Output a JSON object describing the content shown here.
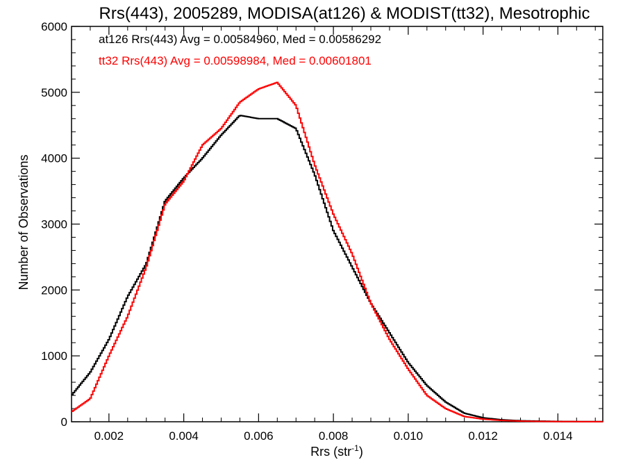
{
  "chart_data": {
    "type": "line",
    "style": "histogram-step",
    "title": "Rrs(443), 2005289, MODISA(at126) & MODIST(tt32), Mesotrophic",
    "xlabel_prefix": "Rrs (str",
    "xlabel_sup": "-1",
    "xlabel_suffix": ")",
    "ylabel": "Number of Observations",
    "xlim": [
      0.001,
      0.0152
    ],
    "ylim": [
      0,
      6000
    ],
    "xticks": [
      0.002,
      0.004,
      0.006,
      0.008,
      0.01,
      0.012,
      0.014
    ],
    "xtick_labels": [
      "0.002",
      "0.004",
      "0.006",
      "0.008",
      "0.010",
      "0.012",
      "0.014"
    ],
    "yticks": [
      0,
      1000,
      2000,
      3000,
      4000,
      5000,
      6000
    ],
    "ytick_labels": [
      "0",
      "1000",
      "2000",
      "3000",
      "4000",
      "5000",
      "6000"
    ],
    "annotations": [
      {
        "text": "at126 Rrs(443) Avg = 0.00584960, Med = 0.00586292",
        "color": "#000000"
      },
      {
        "text": "tt32 Rrs(443) Avg = 0.00598984, Med = 0.00601801",
        "color": "#ff0000"
      }
    ],
    "series": [
      {
        "color": "#000000",
        "x": [
          0.001,
          0.0015,
          0.002,
          0.0025,
          0.003,
          0.0035,
          0.004,
          0.0045,
          0.005,
          0.0055,
          0.006,
          0.0065,
          0.007,
          0.0075,
          0.008,
          0.0085,
          0.009,
          0.0095,
          0.01,
          0.0105,
          0.011,
          0.0115,
          0.012,
          0.0125,
          0.013,
          0.0135,
          0.014,
          0.0145,
          0.0152
        ],
        "values": [
          400,
          750,
          1250,
          1900,
          2400,
          3350,
          3700,
          4000,
          4350,
          4650,
          4600,
          4600,
          4450,
          3750,
          2900,
          2350,
          1800,
          1350,
          900,
          550,
          300,
          130,
          60,
          30,
          15,
          10,
          5,
          3,
          2
        ]
      },
      {
        "color": "#ff0000",
        "x": [
          0.001,
          0.0015,
          0.002,
          0.0025,
          0.003,
          0.0035,
          0.004,
          0.0045,
          0.005,
          0.0055,
          0.006,
          0.0065,
          0.007,
          0.0075,
          0.008,
          0.0085,
          0.009,
          0.0095,
          0.01,
          0.0105,
          0.011,
          0.0115,
          0.012,
          0.0125,
          0.013,
          0.0135,
          0.014,
          0.0145,
          0.0152
        ],
        "values": [
          150,
          350,
          1000,
          1600,
          2350,
          3300,
          3650,
          4200,
          4450,
          4850,
          5050,
          5150,
          4800,
          3900,
          3150,
          2550,
          1800,
          1250,
          800,
          400,
          200,
          80,
          40,
          20,
          10,
          5,
          3,
          2,
          1
        ]
      }
    ]
  }
}
